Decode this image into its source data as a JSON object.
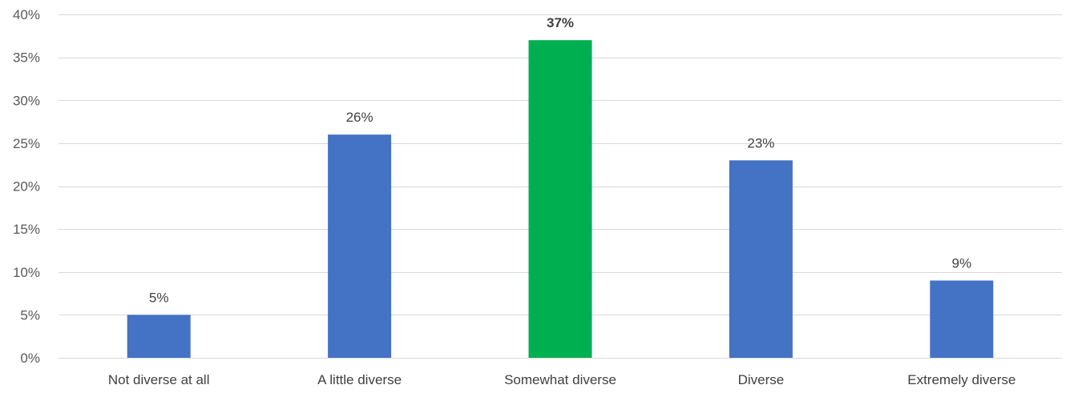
{
  "chart_data": {
    "type": "bar",
    "title": "",
    "xlabel": "",
    "ylabel": "",
    "categories": [
      "Not diverse at all",
      "A little diverse",
      "Somewhat diverse",
      "Diverse",
      "Extremely diverse"
    ],
    "values": [
      5,
      26,
      37,
      23,
      9
    ],
    "data_labels": [
      "5%",
      "26%",
      "37%",
      "23%",
      "9%"
    ],
    "ylim": [
      0,
      40
    ],
    "yticks": [
      0,
      5,
      10,
      15,
      20,
      25,
      30,
      35,
      40
    ],
    "ytick_labels": [
      "0%",
      "5%",
      "10%",
      "15%",
      "20%",
      "25%",
      "30%",
      "35%",
      "40%"
    ],
    "grid": true,
    "legend": "none",
    "colors": {
      "default_bar": "#4472C4",
      "highlight_bar": "#00B050"
    },
    "highlight_index": 2
  }
}
